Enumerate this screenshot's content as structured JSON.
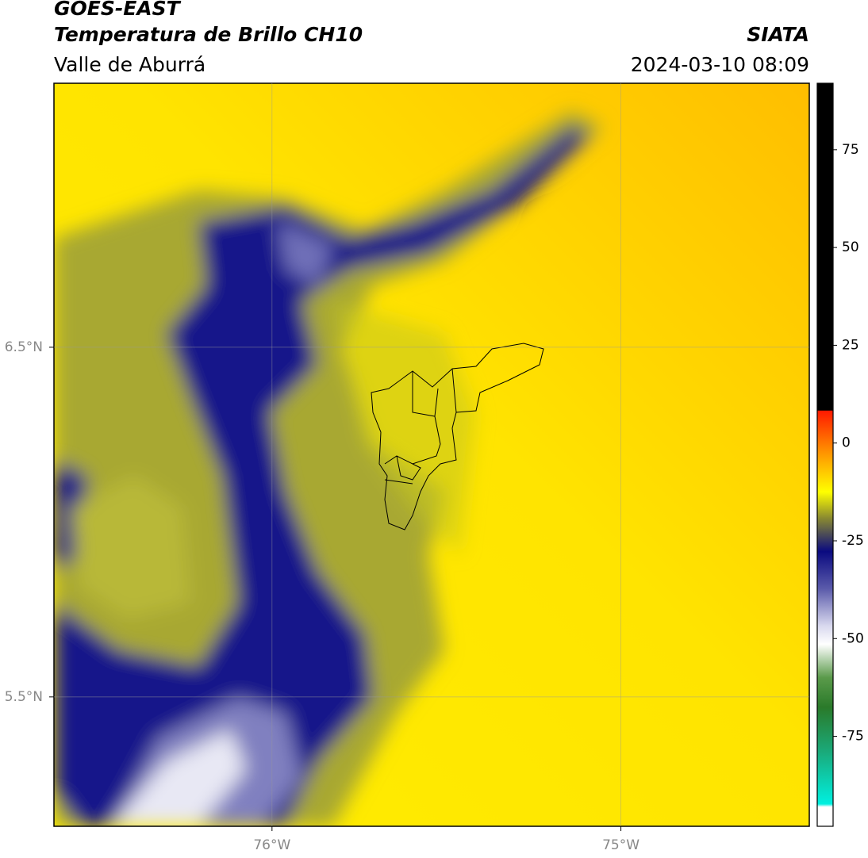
{
  "header": {
    "satellite": "GOES-EAST",
    "product": "Temperatura de Brillo CH10",
    "region": "Valle de Aburrá",
    "agency": "SIATA",
    "datetime": "2024-03-10 08:09"
  },
  "map": {
    "xlim": [
      -76.625,
      -74.46
    ],
    "ylim": [
      5.13,
      7.255
    ],
    "xticks": [
      {
        "value": -76,
        "label": "76°W"
      },
      {
        "value": -75,
        "label": "75°W"
      }
    ],
    "yticks": [
      {
        "value": 6.5,
        "label": "6.5°N"
      },
      {
        "value": 5.5,
        "label": "5.5°N"
      }
    ],
    "grid": true
  },
  "colorbar": {
    "lim": [
      -98,
      92
    ],
    "ticks": [
      75,
      50,
      25,
      0,
      -25,
      -50,
      -75
    ]
  }
}
